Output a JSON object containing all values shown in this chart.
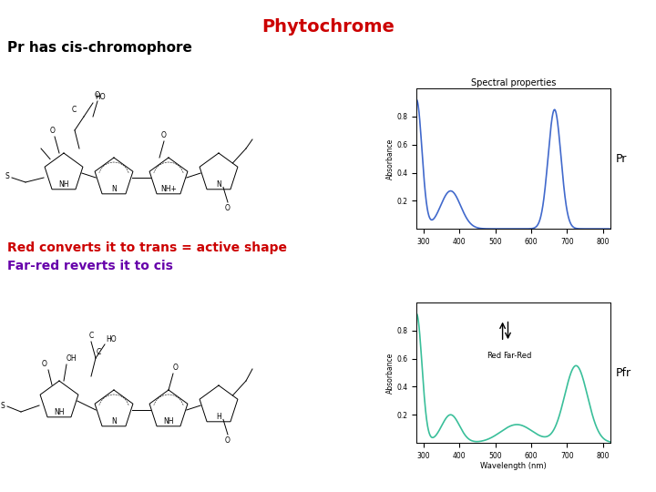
{
  "title": "Phytochrome",
  "title_color": "#cc0000",
  "title_fontsize": 14,
  "subtitle1": "Pr has cis-chromophore",
  "subtitle1_color": "#000000",
  "subtitle1_fontsize": 11,
  "text_red": "Red converts it to trans = active shape",
  "text_red_color": "#cc0000",
  "text_purple": "Far-red reverts it to cis",
  "text_purple_color": "#6600aa",
  "text_fontsize": 10,
  "spectral_title": "Spectral properties",
  "spectral_title_fontsize": 7,
  "pr_label": "Pr",
  "pfr_label": "Pfr",
  "pr_color": "#4169cc",
  "pfr_color": "#3abf9a",
  "wavelength_label": "Wavelength (nm)",
  "absorbance_label": "Absorbance",
  "wl_min": 280,
  "wl_max": 820,
  "wl_ticks": [
    300,
    400,
    500,
    600,
    700,
    800
  ],
  "background": "#ffffff"
}
